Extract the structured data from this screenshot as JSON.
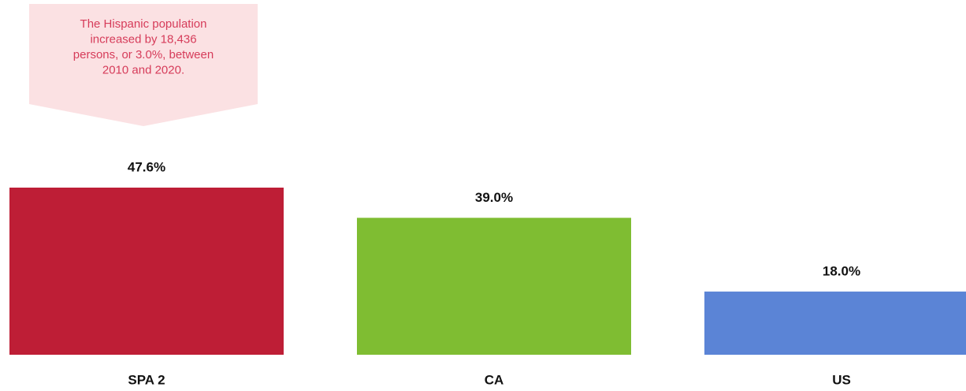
{
  "chart_data": {
    "type": "bar",
    "annotation": [
      "The Hispanic population",
      "increased by 18,436",
      "persons, or 3.0%, between",
      "2010 and 2020."
    ],
    "categories": [
      "SPA 2",
      "CA",
      "US"
    ],
    "values": [
      47.6,
      39.0,
      18.0
    ],
    "value_labels": [
      "47.6%",
      "39.0%",
      "18.0%"
    ],
    "colors": [
      "#be1e36",
      "#7fbd32",
      "#5b84d6"
    ]
  }
}
